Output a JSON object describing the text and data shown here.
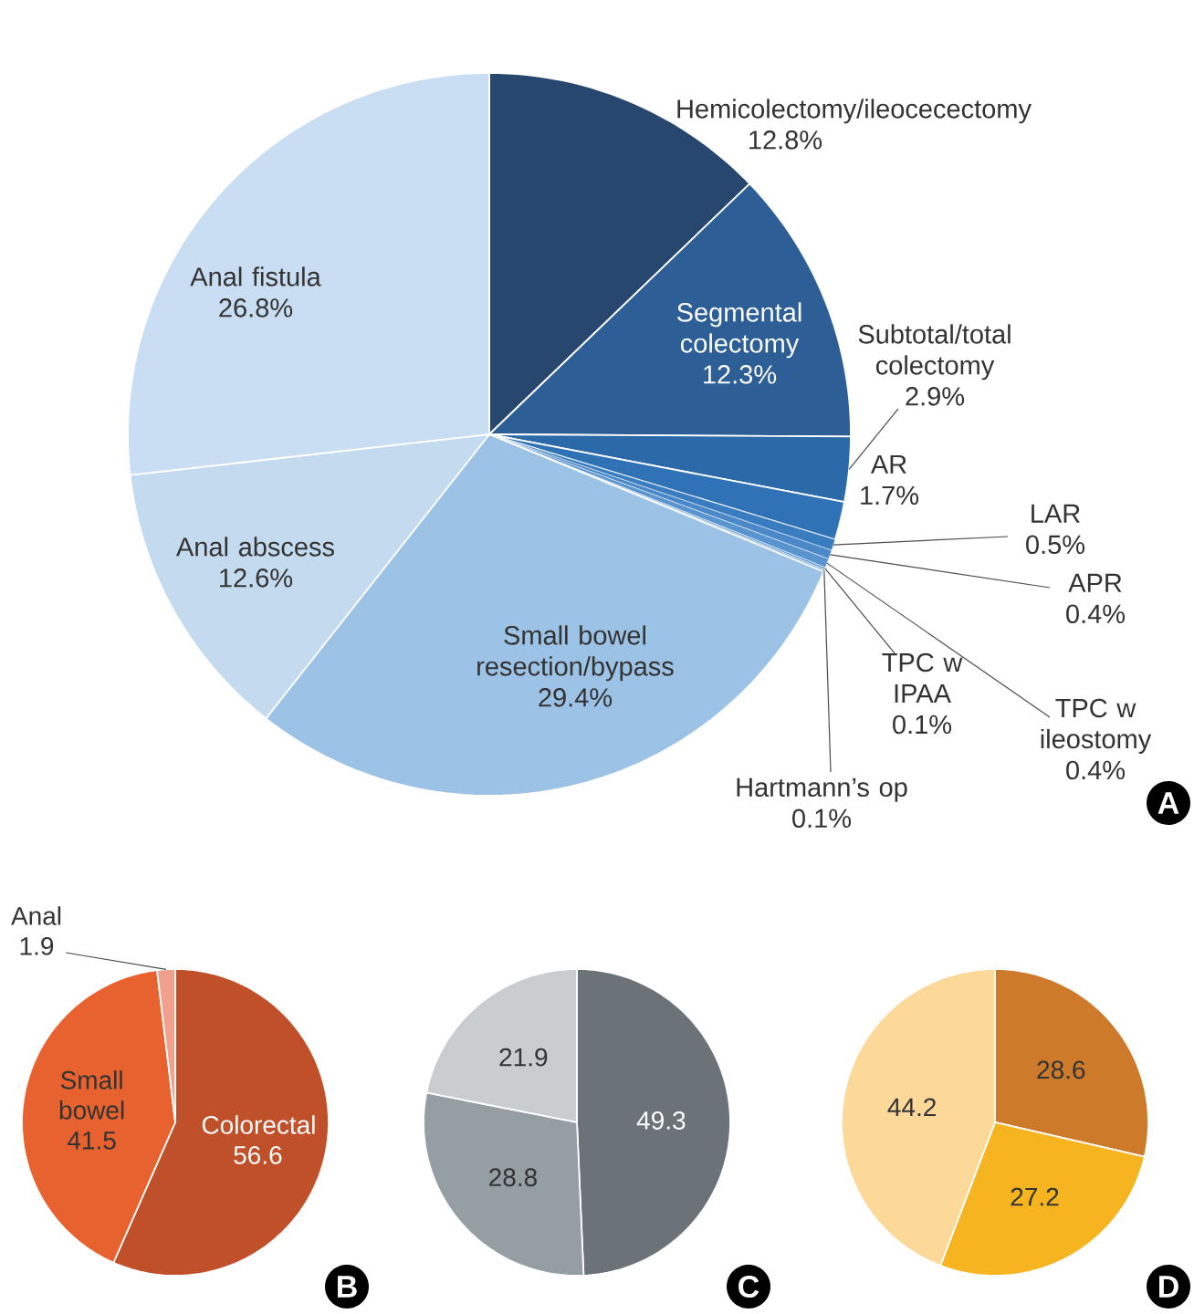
{
  "chart_data": [
    {
      "type": "pie",
      "categories": [
        "Hemicolectomy/ileocecectomy",
        "Segmental colectomy",
        "Subtotal/total colectomy",
        "AR",
        "LAR",
        "APR",
        "TPC w ileostomy",
        "TPC w IPAA",
        "Hartmann’s op",
        "Small bowel resection/bypass",
        "Anal abscess",
        "Anal fistula"
      ],
      "values": [
        12.8,
        12.3,
        2.9,
        1.7,
        0.5,
        0.4,
        0.4,
        0.1,
        0.1,
        29.4,
        12.6,
        26.8
      ],
      "colors": [
        "#28476f",
        "#2d5f96",
        "#2b69a8",
        "#2f72b5",
        "#3a7cc0",
        "#4a88c8",
        "#5a94cf",
        "#6aa0d5",
        "#80b0dd",
        "#9cc2e6",
        "#c3daef",
        "#c9def2"
      ],
      "value_labels": [
        "12.8%",
        "12.3%",
        "2.9%",
        "1.7%",
        "0.5%",
        "0.4%",
        "0.4%",
        "0.1%",
        "0.1%",
        "29.4%",
        "12.6%",
        "26.8%"
      ],
      "annotations": [
        "A"
      ]
    },
    {
      "type": "pie",
      "categories": [
        "Colorectal",
        "Small bowel",
        "Anal"
      ],
      "values": [
        56.6,
        41.5,
        1.9
      ],
      "colors": [
        "#c0502a",
        "#e8622f",
        "#f2a08e"
      ],
      "data_labels": true,
      "annotations": [
        "B"
      ]
    },
    {
      "type": "pie",
      "categories": [
        null,
        null,
        null
      ],
      "values": [
        49.3,
        28.8,
        21.9
      ],
      "colors": [
        "#6b7378",
        "#959ea3",
        "#c9cdd0"
      ],
      "data_labels": true,
      "annotations": [
        "C"
      ]
    },
    {
      "type": "pie",
      "categories": [
        null,
        null,
        null
      ],
      "values": [
        28.6,
        27.2,
        44.2
      ],
      "colors": [
        "#cd7b2b",
        "#f6b520",
        "#fcd899"
      ],
      "data_labels": true,
      "annotations": [
        "D"
      ]
    }
  ]
}
